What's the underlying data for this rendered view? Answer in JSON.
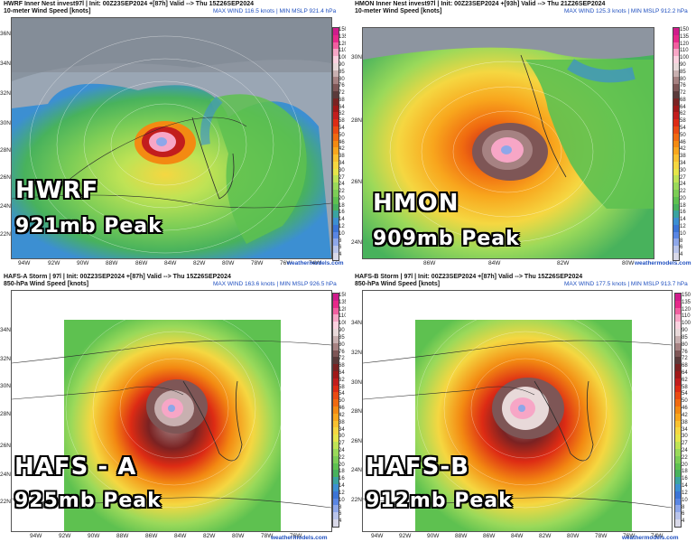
{
  "panels": [
    {
      "header_line1": "HWRF Inner Nest  invest97l | Init: 00Z23SEP2024 +[87h] Valid --> Thu 15Z26SEP2024",
      "header_line2": "10-meter Wind Speed [knots]",
      "max_wind": "MAX WIND 116.5 knots | MIN MSLP 921.4 hPa",
      "model_label": "HWRF",
      "peak_label": "921mb Peak",
      "lat_labels": [
        "36N",
        "34N",
        "32N",
        "30N",
        "28N",
        "26N",
        "24N",
        "22N"
      ],
      "lon_labels": [
        "94W",
        "92W",
        "90W",
        "88W",
        "86W",
        "84W",
        "82W",
        "80W",
        "78W",
        "76W",
        "74W"
      ],
      "watermark": "weathermodels.com"
    },
    {
      "header_line1": "HMON Inner Nest  invest97l | Init: 00Z23SEP2024 +[93h] Valid --> Thu 21Z26SEP2024",
      "header_line2": "10-meter Wind Speed [knots]",
      "max_wind": "MAX WIND 125.3 knots | MIN MSLP 912.2 hPa",
      "model_label": "HMON",
      "peak_label": "909mb Peak",
      "lat_labels": [
        "30N",
        "28N",
        "26N",
        "24N"
      ],
      "lon_labels": [
        "86W",
        "84W",
        "82W",
        "80W"
      ],
      "watermark": "weathermodels.com"
    },
    {
      "header_line1": "HAFS-A Storm | 97l | Init: 00Z23SEP2024 +[87h] Valid --> Thu 15Z26SEP2024",
      "header_line2": "850-hPa Wind Speed [knots]",
      "max_wind": "MAX WIND 163.6 knots | MIN MSLP 926.5 hPa",
      "model_label": "HAFS - A",
      "peak_label": "925mb Peak",
      "lat_labels": [
        "34N",
        "32N",
        "30N",
        "28N",
        "26N",
        "24N",
        "22N"
      ],
      "lon_labels": [
        "94W",
        "92W",
        "90W",
        "88W",
        "86W",
        "84W",
        "82W",
        "80W",
        "78W",
        "76W"
      ],
      "watermark": "weathermodels.com"
    },
    {
      "header_line1": "HAFS-B Storm | 97l | Init: 00Z23SEP2024 +[87h] Valid --> Thu 15Z26SEP2024",
      "header_line2": "850-hPa Wind Speed [knots]",
      "max_wind": "MAX WIND 177.5 knots | MIN MSLP 913.7 hPa",
      "model_label": "HAFS-B",
      "peak_label": "912mb Peak",
      "lat_labels": [
        "34N",
        "32N",
        "30N",
        "28N",
        "26N",
        "24N",
        "22N"
      ],
      "lon_labels": [
        "94W",
        "92W",
        "90W",
        "88W",
        "86W",
        "84W",
        "82W",
        "80W",
        "78W",
        "76W",
        "74W"
      ],
      "watermark": "weathermodels.com"
    }
  ],
  "colorbar": {
    "ticks": [
      "150",
      "135",
      "120",
      "110",
      "100",
      "90",
      "85",
      "80",
      "76",
      "72",
      "68",
      "64",
      "62",
      "58",
      "54",
      "50",
      "46",
      "42",
      "38",
      "34",
      "30",
      "27",
      "24",
      "22",
      "20",
      "18",
      "16",
      "14",
      "12",
      "10",
      "8",
      "6",
      "4"
    ],
    "colors": [
      "#d01c8b",
      "#e7298a",
      "#f15fa0",
      "#f7a6c6",
      "#fbd1df",
      "#e8d9d9",
      "#c8b0b0",
      "#a68282",
      "#7e5656",
      "#5b3a3a",
      "#7a2222",
      "#a01818",
      "#c21d1d",
      "#dd2b14",
      "#ea4a12",
      "#f06a10",
      "#f38a12",
      "#f8a61d",
      "#f9c130",
      "#f5d741",
      "#e6e54a",
      "#bfe355",
      "#9ad95a",
      "#7ccd56",
      "#5ec150",
      "#48b25c",
      "#3aa3a0",
      "#3c8fd2",
      "#3b74d6",
      "#5a86e3",
      "#8ea7e9",
      "#b9c4ea",
      "#d9d9e8"
    ]
  },
  "colors": {
    "header_text": "#111111",
    "maxwind_text": "#1f4fbf",
    "label_text": "#ffffff"
  }
}
